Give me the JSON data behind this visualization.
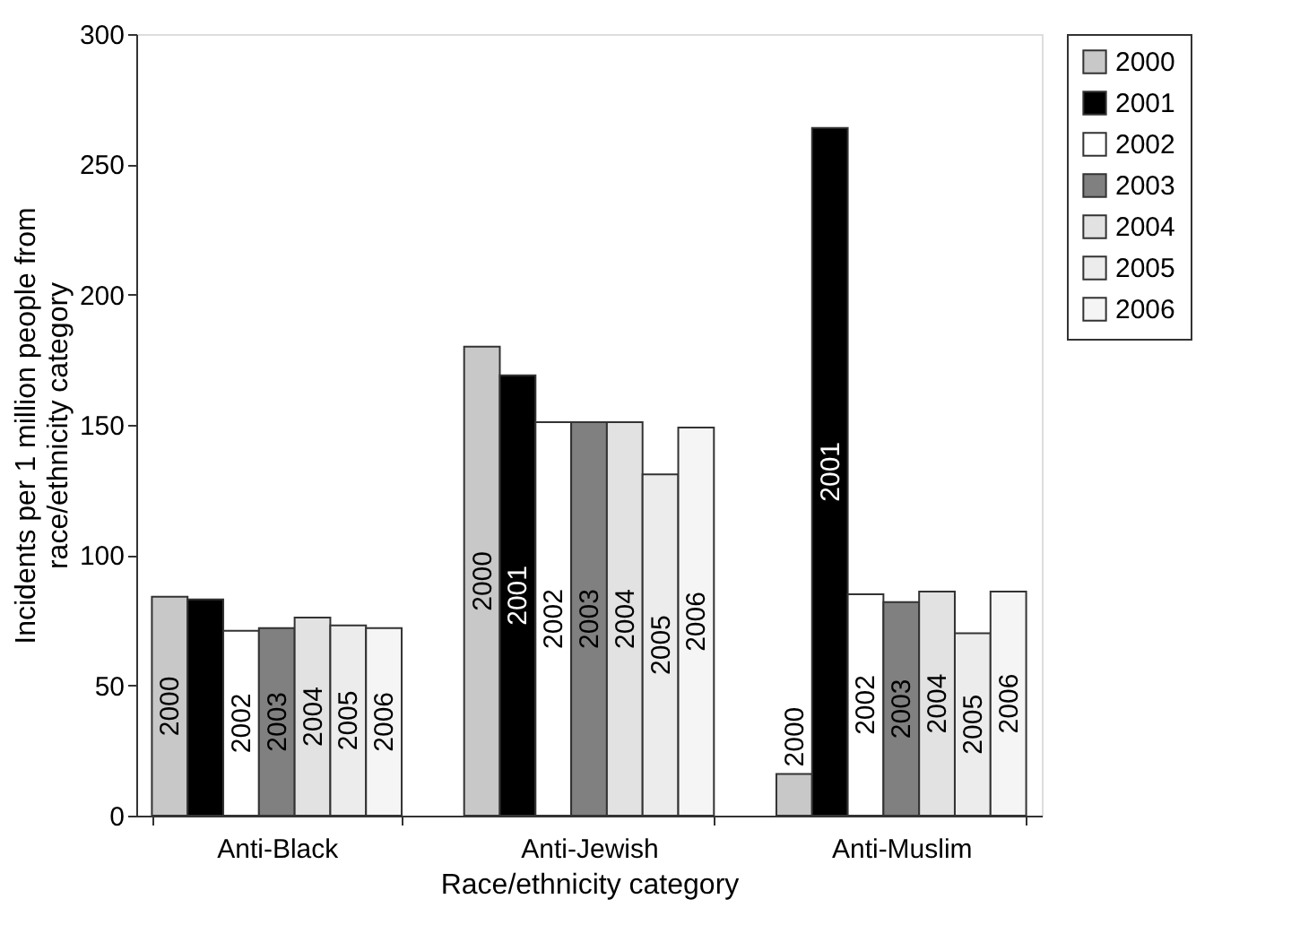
{
  "chart_data": {
    "type": "bar",
    "xlabel": "Race/ethnicity category",
    "ylabel": "Incidents per 1 million people from race/ethnicity category",
    "categories": [
      "Anti-Black",
      "Anti-Jewish",
      "Anti-Muslim"
    ],
    "series": [
      {
        "name": "2000",
        "color": "#c8c8c8",
        "values": [
          84,
          180,
          16
        ]
      },
      {
        "name": "2001",
        "color": "#000000",
        "values": [
          83,
          169,
          264
        ]
      },
      {
        "name": "2002",
        "color": "#ffffff",
        "values": [
          71,
          151,
          85
        ]
      },
      {
        "name": "2003",
        "color": "#808080",
        "values": [
          72,
          151,
          82
        ]
      },
      {
        "name": "2004",
        "color": "#e2e2e2",
        "values": [
          76,
          151,
          86
        ]
      },
      {
        "name": "2005",
        "color": "#ececec",
        "values": [
          73,
          131,
          70
        ]
      },
      {
        "name": "2006",
        "color": "#f5f5f5",
        "values": [
          72,
          149,
          86
        ]
      }
    ],
    "annotations": [
      "2000",
      "2002",
      "2003",
      "2004",
      "2005",
      "2006",
      "2000",
      "2001",
      "2002",
      "2003",
      "2004",
      "2005",
      "2006",
      "2000",
      "2001",
      "2002",
      "2003",
      "2004",
      "2005",
      "2006"
    ],
    "ylim": [
      0,
      300
    ],
    "yticks": [
      0,
      50,
      100,
      150,
      200,
      250,
      300
    ],
    "grid": false,
    "legend": "right"
  }
}
